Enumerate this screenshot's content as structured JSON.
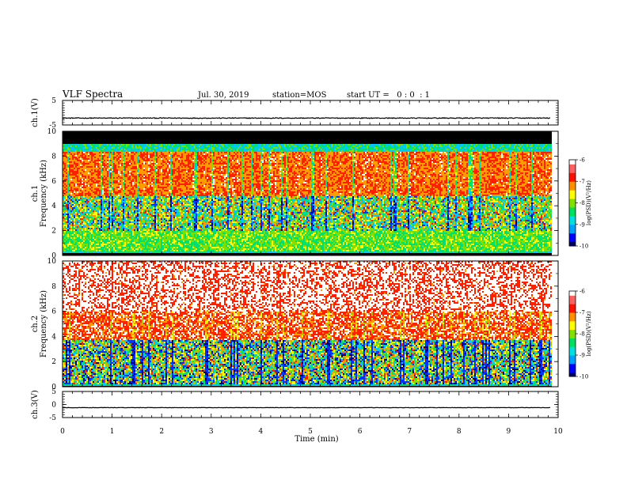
{
  "header": {
    "title": "VLF Spectra",
    "date": "Jul. 30, 2019",
    "station": "station=MOS",
    "start": "start UT =   0 : 0  : 1"
  },
  "chart_data": [
    {
      "type": "line",
      "panel": "ch1-waveform",
      "ylabel": "ch.1(V)",
      "ylim": [
        -5,
        5
      ],
      "y_ticks": [
        "5",
        "-5"
      ],
      "baseline": -2.2,
      "color": "#000000"
    },
    {
      "type": "heatmap",
      "panel": "ch1-spectrogram",
      "ylabel": "ch.1\nFrequency (kHz)",
      "ylim": [
        0,
        10
      ],
      "y_ticks": [
        "0",
        "2",
        "4",
        "6",
        "8",
        "10"
      ],
      "bands_khz": {
        "black_above": 9.0,
        "cyan_blue_top": [
          8.4,
          9.0
        ],
        "red_band": [
          4.8,
          7.8
        ],
        "mixed_band": [
          2.1,
          4.8
        ],
        "green_band": [
          0.4,
          2.1
        ],
        "black_floor": [
          0,
          0.25
        ]
      },
      "colorbar": {
        "label": "log(PSD)(V²/Hz)",
        "range": [
          -10,
          -6
        ],
        "ticks": [
          "-6",
          "-7",
          "-8",
          "-9",
          "-10"
        ]
      }
    },
    {
      "type": "heatmap",
      "panel": "ch2-spectrogram",
      "ylabel": "ch.2\nFrequency (kHz)",
      "ylim": [
        0,
        10
      ],
      "y_ticks": [
        "0",
        "2",
        "4",
        "6",
        "8",
        "10"
      ],
      "bands_khz": {
        "white_speckle": [
          6.0,
          10.0
        ],
        "red_band": [
          3.8,
          6.0
        ],
        "mixed_band": [
          0.3,
          3.8
        ],
        "black_floor": [
          0,
          0.15
        ]
      },
      "colorbar": {
        "label": "log(PSD)(V²/Hz)",
        "range": [
          -10,
          -6
        ],
        "ticks": [
          "-6",
          "-7",
          "-8",
          "-9",
          "-10"
        ]
      }
    },
    {
      "type": "line",
      "panel": "ch3-waveform",
      "ylabel": "ch.3(V)",
      "ylim": [
        -5,
        5
      ],
      "y_ticks": [
        "5",
        "0",
        "-5"
      ],
      "baseline": -1.2,
      "color": "#000000"
    }
  ],
  "x_axis": {
    "label": "Time (min)",
    "xlim": [
      0,
      10
    ],
    "ticks": [
      "0",
      "1",
      "2",
      "3",
      "4",
      "5",
      "6",
      "7",
      "8",
      "9",
      "10"
    ],
    "data_end_min": 9.85
  },
  "colormap": [
    "#00007a",
    "#0033ff",
    "#00c8ff",
    "#00e070",
    "#7fe000",
    "#ffff00",
    "#ff9a00",
    "#ff2000",
    "#ffffff"
  ]
}
